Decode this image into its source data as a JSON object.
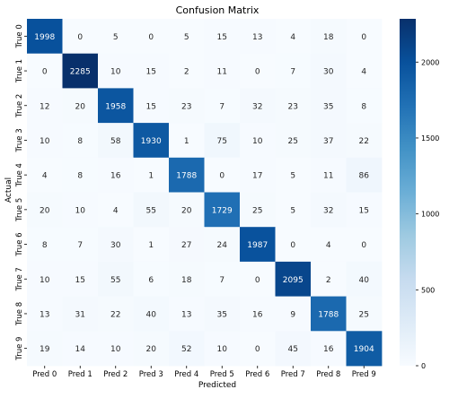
{
  "chart_data": {
    "type": "heatmap",
    "title": "Confusion Matrix",
    "xlabel": "Predicted",
    "ylabel": "Actual",
    "x_categories": [
      "Pred 0",
      "Pred 1",
      "Pred 2",
      "Pred 3",
      "Pred 4",
      "Pred 5",
      "Pred 6",
      "Pred 7",
      "Pred 8",
      "Pred 9"
    ],
    "y_categories": [
      "True 0",
      "True 1",
      "True 2",
      "True 3",
      "True 4",
      "True 5",
      "True 6",
      "True 7",
      "True 8",
      "True 9"
    ],
    "matrix": [
      [
        1998,
        0,
        5,
        0,
        5,
        15,
        13,
        4,
        18,
        0
      ],
      [
        0,
        2285,
        10,
        15,
        2,
        11,
        0,
        7,
        30,
        4
      ],
      [
        12,
        20,
        1958,
        15,
        23,
        7,
        32,
        23,
        35,
        8
      ],
      [
        10,
        8,
        58,
        1930,
        1,
        75,
        10,
        25,
        37,
        22
      ],
      [
        4,
        8,
        16,
        1,
        1788,
        0,
        17,
        5,
        11,
        86
      ],
      [
        20,
        10,
        4,
        55,
        20,
        1729,
        25,
        5,
        32,
        15
      ],
      [
        8,
        7,
        30,
        1,
        27,
        24,
        1987,
        0,
        4,
        0
      ],
      [
        10,
        15,
        55,
        6,
        18,
        7,
        0,
        2095,
        2,
        40
      ],
      [
        13,
        31,
        22,
        40,
        13,
        35,
        16,
        9,
        1788,
        25
      ],
      [
        19,
        14,
        10,
        20,
        52,
        10,
        0,
        45,
        16,
        1904
      ]
    ],
    "colorbar": {
      "min": 0,
      "max": 2285,
      "ticks": [
        0,
        500,
        1000,
        1500,
        2000
      ]
    },
    "colormap": "Blues",
    "colors": {
      "low": "#f7fbff",
      "high": "#08306b"
    }
  }
}
